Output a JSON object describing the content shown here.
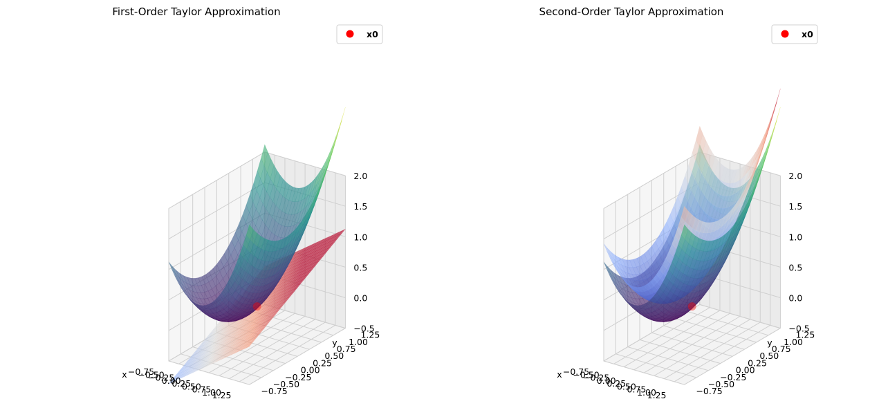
{
  "chart_data": [
    {
      "type": "surface3d",
      "title": "First-Order Taylor Approximation",
      "xlabel": "x",
      "ylabel": "y",
      "xticks": [
        "−0.75",
        "−0.50",
        "−0.25",
        "0.00",
        "0.25",
        "0.50",
        "0.75",
        "1.00",
        "1.25"
      ],
      "yticks": [
        "−0.75",
        "−0.50",
        "−0.25",
        "0.00",
        "0.25",
        "0.50",
        "0.75",
        "1.00",
        "1.25"
      ],
      "zticks": [
        "−0.5",
        "0.0",
        "0.5",
        "1.0",
        "1.5",
        "2.0"
      ],
      "xlim": [
        -0.75,
        1.25
      ],
      "ylim": [
        -0.75,
        1.25
      ],
      "zlim": [
        -0.5,
        2.0
      ],
      "x0": [
        0.25,
        0.25
      ],
      "surfaces": [
        {
          "function": "x^2 + y^2",
          "colormap": "viridis",
          "alpha": 0.6
        },
        {
          "function": "first-order Taylor expansion at x0 (plane)",
          "colormap": "coolwarm",
          "alpha": 0.6
        }
      ],
      "legend": {
        "position": "upper-right",
        "entries": [
          "x0"
        ],
        "marker_color": "#ff0000"
      }
    },
    {
      "type": "surface3d",
      "title": "Second-Order Taylor Approximation",
      "xlabel": "x",
      "ylabel": "y",
      "xticks": [
        "−0.75",
        "−0.50",
        "−0.25",
        "0.00",
        "0.25",
        "0.50",
        "0.75",
        "1.00",
        "1.25"
      ],
      "yticks": [
        "−0.75",
        "−0.50",
        "−0.25",
        "0.00",
        "0.25",
        "0.50",
        "0.75",
        "1.00",
        "1.25"
      ],
      "zticks": [
        "−0.5",
        "0.0",
        "0.5",
        "1.0",
        "1.5",
        "2.0"
      ],
      "xlim": [
        -0.75,
        1.25
      ],
      "ylim": [
        -0.75,
        1.25
      ],
      "zlim": [
        -0.5,
        2.0
      ],
      "x0": [
        0.25,
        0.25
      ],
      "surfaces": [
        {
          "function": "x^2 + y^2",
          "colormap": "viridis",
          "alpha": 0.6
        },
        {
          "function": "second-order Taylor expansion at x0 (paraboloid)",
          "colormap": "coolwarm",
          "alpha": 0.6
        }
      ],
      "legend": {
        "position": "upper-right",
        "entries": [
          "x0"
        ],
        "marker_color": "#ff0000"
      }
    }
  ]
}
